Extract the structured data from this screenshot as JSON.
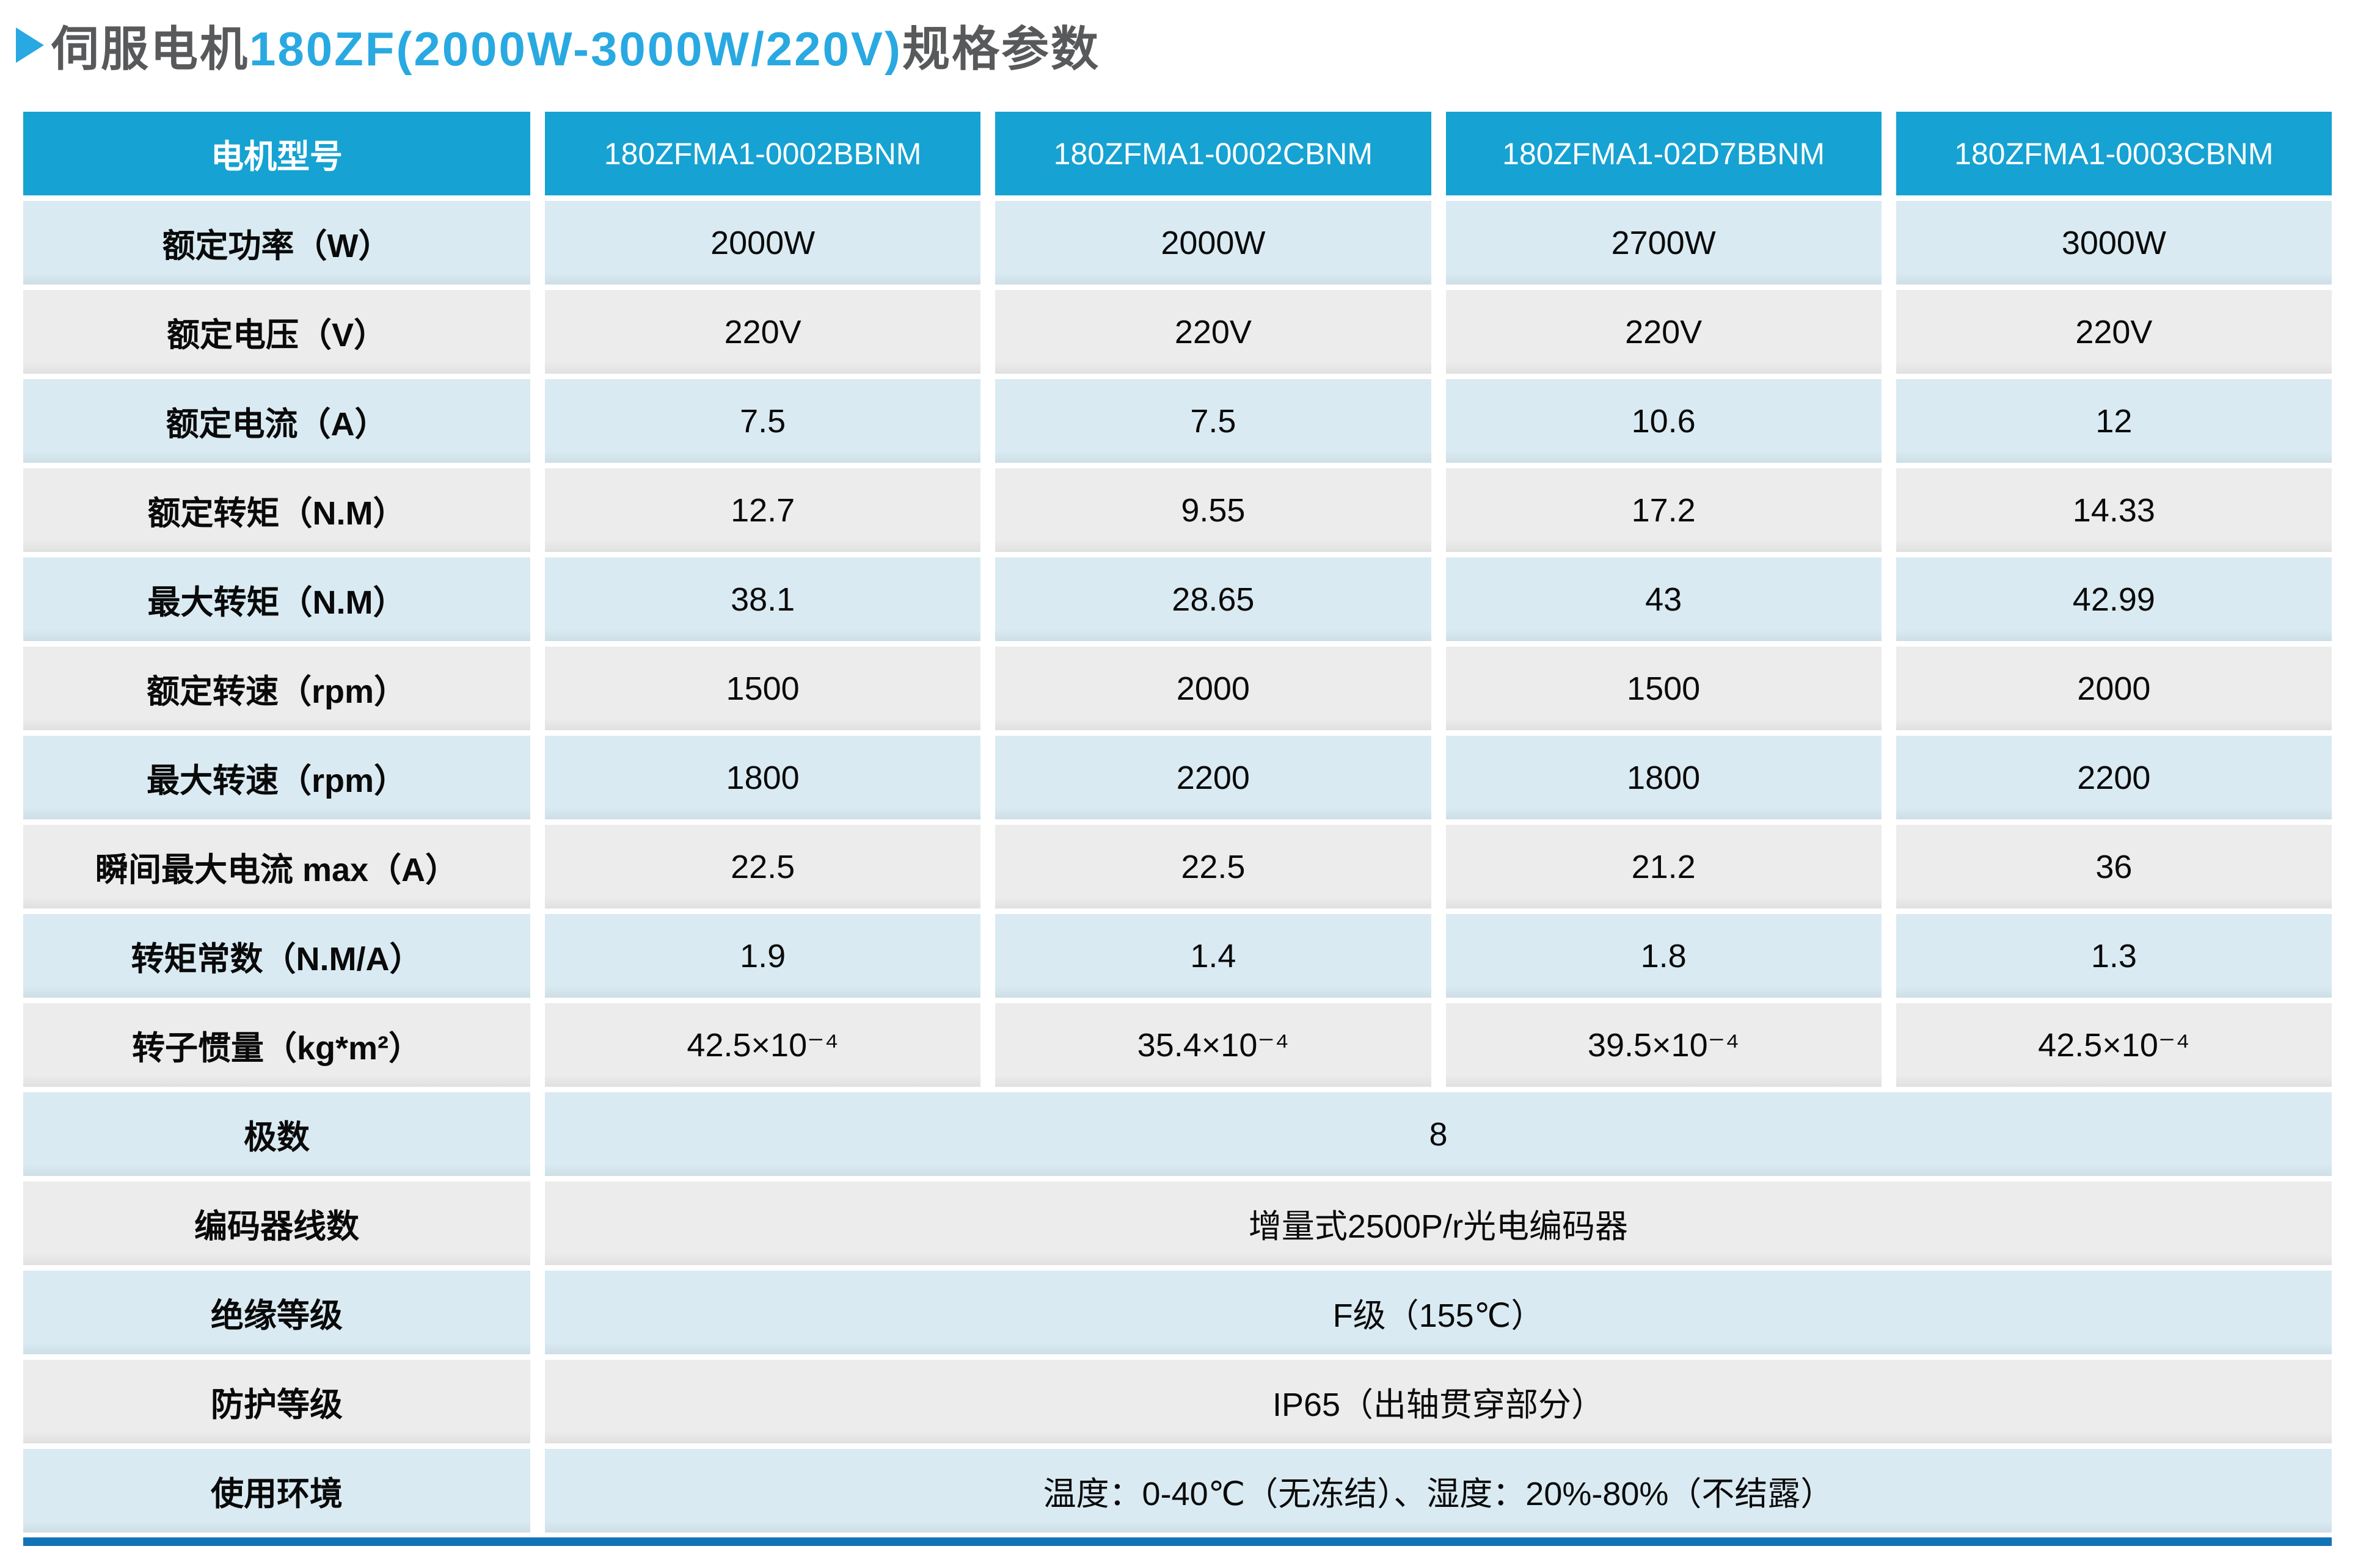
{
  "title": {
    "prefix": "伺服电机",
    "highlight": "180ZF(2000W-3000W/220V)",
    "suffix": "规格参数"
  },
  "colors": {
    "header_bg": "#16a2d2",
    "row_blue": "#d9eaf2",
    "row_gray": "#ececec",
    "accent": "#29a9e1",
    "title_text": "#58595b",
    "bottom_bar": "#1273b6"
  },
  "table": {
    "header": {
      "label": "电机型号",
      "models": [
        "180ZFMA1-0002BBNM",
        "180ZFMA1-0002CBNM",
        "180ZFMA1-02D7BBNM",
        "180ZFMA1-0003CBNM"
      ]
    },
    "rows": [
      {
        "label": "额定功率（W）",
        "values": [
          "2000W",
          "2000W",
          "2700W",
          "3000W"
        ]
      },
      {
        "label": "额定电压（V）",
        "values": [
          "220V",
          "220V",
          "220V",
          "220V"
        ]
      },
      {
        "label": "额定电流（A）",
        "values": [
          "7.5",
          "7.5",
          "10.6",
          "12"
        ]
      },
      {
        "label": "额定转矩（N.M）",
        "values": [
          "12.7",
          "9.55",
          "17.2",
          "14.33"
        ]
      },
      {
        "label": "最大转矩（N.M）",
        "values": [
          "38.1",
          "28.65",
          "43",
          "42.99"
        ]
      },
      {
        "label": "额定转速（rpm）",
        "values": [
          "1500",
          "2000",
          "1500",
          "2000"
        ]
      },
      {
        "label": "最大转速（rpm）",
        "values": [
          "1800",
          "2200",
          "1800",
          "2200"
        ]
      },
      {
        "label": "瞬间最大电流 max（A）",
        "values": [
          "22.5",
          "22.5",
          "21.2",
          "36"
        ]
      },
      {
        "label": "转矩常数（N.M/A）",
        "values": [
          "1.9",
          "1.4",
          "1.8",
          "1.3"
        ]
      },
      {
        "label": "转子惯量（kg*m²）",
        "values": [
          "42.5×10⁻⁴",
          "35.4×10⁻⁴",
          "39.5×10⁻⁴",
          "42.5×10⁻⁴"
        ]
      }
    ],
    "merged_rows": [
      {
        "label": "极数",
        "value": "8"
      },
      {
        "label": "编码器线数",
        "value": "增量式2500P/r光电编码器"
      },
      {
        "label": "绝缘等级",
        "value": "F级（155℃）"
      },
      {
        "label": "防护等级",
        "value": "IP65（出轴贯穿部分）"
      },
      {
        "label": "使用环境",
        "value": "温度：0-40℃（无冻结）、湿度：20%-80%（不结露）"
      }
    ]
  }
}
